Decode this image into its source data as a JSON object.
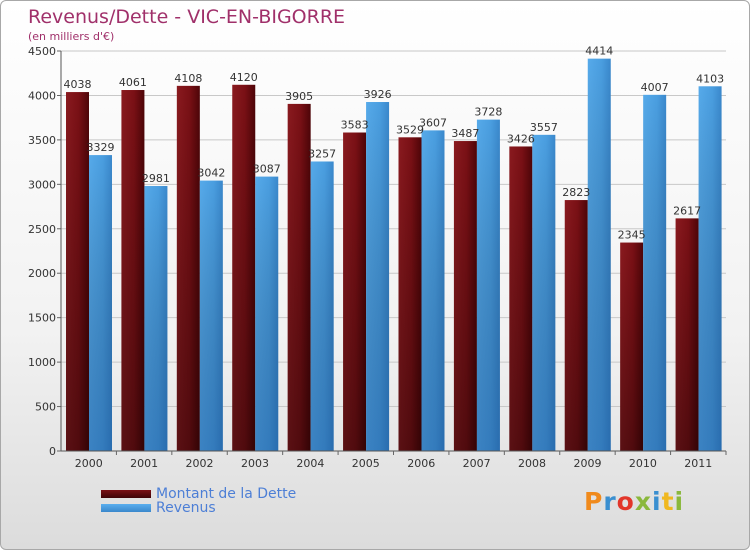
{
  "title": "Revenus/Dette - VIC-EN-BIGORRE",
  "subtitle": "(en milliers d'€)",
  "logo": {
    "letters": [
      "P",
      "r",
      "o",
      "x",
      "i",
      "t",
      "i"
    ]
  },
  "colors": {
    "title": "#a0306a",
    "debt": "#7a0f14",
    "revenue": "#4a9ee0",
    "legend_text": "#4d7fd6",
    "grid": "#c8c8c8",
    "axis_text": "#333333",
    "logo": [
      "#f08a1c",
      "#3a8fd0",
      "#e2362a",
      "#8ab83c",
      "#3a8fd0",
      "#f0b820",
      "#8ab83c"
    ]
  },
  "legend": {
    "debt_label": "Montant de la Dette",
    "revenue_label": "Revenus"
  },
  "chart_data": {
    "type": "bar",
    "title": "Revenus/Dette - VIC-EN-BIGORRE",
    "ylabel": "(en milliers d'€)",
    "xlabel": "",
    "ylim": [
      0,
      4500
    ],
    "yticks": [
      0,
      500,
      1000,
      1500,
      2000,
      2500,
      3000,
      3500,
      4000,
      4500
    ],
    "grid": true,
    "legend_position": "bottom-left",
    "categories": [
      "2000",
      "2001",
      "2002",
      "2003",
      "2004",
      "2005",
      "2006",
      "2007",
      "2008",
      "2009",
      "2010",
      "2011"
    ],
    "series": [
      {
        "name": "Montant de la Dette",
        "values": [
          4038,
          4061,
          4108,
          4120,
          3905,
          3583,
          3529,
          3487,
          3426,
          2823,
          2345,
          2617
        ]
      },
      {
        "name": "Revenus",
        "values": [
          3329,
          2981,
          3042,
          3087,
          3257,
          3926,
          3607,
          3728,
          3557,
          4414,
          4007,
          4103
        ]
      }
    ]
  }
}
